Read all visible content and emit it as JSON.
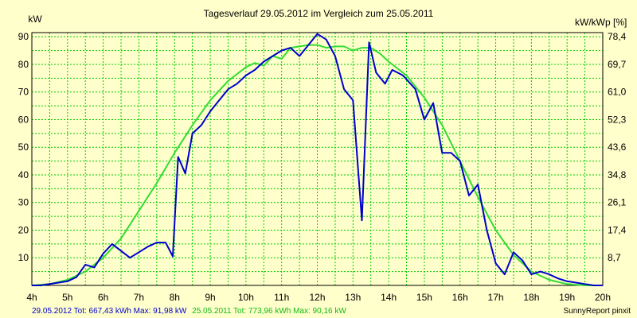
{
  "chart_data": {
    "type": "line",
    "title": "Tagesverlauf 29.05.2012 im Vergleich zum 25.05.2011",
    "ylabel_left": "kW",
    "ylabel_right": "kW/kWp [%]",
    "xlim": [
      4,
      20
    ],
    "ylim": [
      0,
      91.5
    ],
    "x_ticks": [
      {
        "v": 4,
        "label": "4h"
      },
      {
        "v": 5,
        "label": "5h"
      },
      {
        "v": 6,
        "label": "6h"
      },
      {
        "v": 7,
        "label": "7h"
      },
      {
        "v": 8,
        "label": "8h"
      },
      {
        "v": 9,
        "label": "9h"
      },
      {
        "v": 10,
        "label": "10h"
      },
      {
        "v": 11,
        "label": "11h"
      },
      {
        "v": 12,
        "label": "12h"
      },
      {
        "v": 13,
        "label": "13h"
      },
      {
        "v": 14,
        "label": "14h"
      },
      {
        "v": 15,
        "label": "15h"
      },
      {
        "v": 16,
        "label": "16h"
      },
      {
        "v": 17,
        "label": "17h"
      },
      {
        "v": 18,
        "label": "18h"
      },
      {
        "v": 19,
        "label": "19h"
      },
      {
        "v": 20,
        "label": "20h"
      }
    ],
    "y_ticks_left": [
      {
        "v": 10,
        "label": "10"
      },
      {
        "v": 20,
        "label": "20"
      },
      {
        "v": 30,
        "label": "30"
      },
      {
        "v": 40,
        "label": "40"
      },
      {
        "v": 50,
        "label": "50"
      },
      {
        "v": 60,
        "label": "60"
      },
      {
        "v": 70,
        "label": "70"
      },
      {
        "v": 80,
        "label": "80"
      },
      {
        "v": 90,
        "label": "90"
      }
    ],
    "y_ticks_right": [
      {
        "v": 10,
        "label": "8,7"
      },
      {
        "v": 20,
        "label": "17,4"
      },
      {
        "v": 30,
        "label": "26,1"
      },
      {
        "v": 40,
        "label": "34,8"
      },
      {
        "v": 50,
        "label": "43,6"
      },
      {
        "v": 60,
        "label": "52,3"
      },
      {
        "v": 70,
        "label": "61,0"
      },
      {
        "v": 80,
        "label": "69,7"
      },
      {
        "v": 90,
        "label": "78,4"
      }
    ],
    "grid": true,
    "series": [
      {
        "name": "29.05.2012",
        "color": "#0000cc",
        "x": [
          4,
          4.25,
          4.5,
          4.75,
          5,
          5.25,
          5.5,
          5.75,
          6,
          6.25,
          6.5,
          6.75,
          7,
          7.25,
          7.5,
          7.75,
          7.95,
          8.1,
          8.3,
          8.5,
          8.75,
          9,
          9.25,
          9.5,
          9.75,
          10,
          10.25,
          10.5,
          10.75,
          11,
          11.25,
          11.5,
          11.75,
          12,
          12.25,
          12.5,
          12.75,
          13,
          13.25,
          13.45,
          13.65,
          13.9,
          14.1,
          14.4,
          14.75,
          15,
          15.25,
          15.5,
          15.75,
          16,
          16.25,
          16.5,
          16.75,
          17,
          17.25,
          17.5,
          17.75,
          18,
          18.25,
          18.5,
          18.75,
          19,
          19.25,
          19.5,
          19.75,
          20
        ],
        "y": [
          0,
          0,
          0.5,
          1,
          1.5,
          3,
          7.5,
          6.5,
          11.5,
          15,
          12.5,
          10,
          12,
          14,
          15.5,
          15.5,
          10.5,
          46.5,
          40.5,
          55,
          58,
          63,
          67,
          71,
          73,
          76,
          78,
          81,
          83,
          85,
          86,
          83,
          87,
          91,
          89,
          83,
          71,
          67,
          23.5,
          88,
          77,
          73,
          78,
          76,
          71,
          60,
          66,
          48,
          48,
          45,
          32.5,
          36.5,
          20,
          8,
          4,
          12,
          9,
          4,
          5,
          4,
          2.5,
          1.5,
          1,
          0.5,
          0,
          0
        ]
      },
      {
        "name": "25.05.2011",
        "color": "#33dd33",
        "x": [
          4,
          4.5,
          5,
          5.5,
          6,
          6.5,
          7,
          7.5,
          8,
          8.5,
          9,
          9.5,
          10,
          10.25,
          10.5,
          10.75,
          11,
          11.25,
          11.5,
          11.75,
          12,
          12.25,
          12.5,
          12.75,
          13,
          13.25,
          13.5,
          13.75,
          14,
          14.5,
          15,
          15.5,
          16,
          16.5,
          17,
          17.5,
          18,
          18.5,
          19,
          19.5,
          20
        ],
        "y": [
          0,
          0.5,
          2,
          5,
          10,
          17,
          27,
          37,
          48,
          58,
          67,
          74,
          79,
          80.5,
          79.5,
          83,
          82,
          86,
          86.5,
          87,
          87,
          86,
          86.5,
          86.5,
          85,
          86,
          86,
          84,
          81,
          76,
          68,
          58,
          45,
          32,
          20,
          11,
          5,
          2,
          0.5,
          0,
          0
        ]
      }
    ],
    "footer": {
      "left_blue": "29.05.2012 Tot: 667,43 kWh Max: 91,98 kW",
      "left_green": "25.05.2011 Tot: 773,96 kWh Max: 90,16 kW",
      "right": "SunnyReport pinxit"
    }
  },
  "colors": {
    "background": "#ffffcc",
    "grid": "#00cc00",
    "blue": "#0000cc",
    "green": "#33dd33"
  }
}
